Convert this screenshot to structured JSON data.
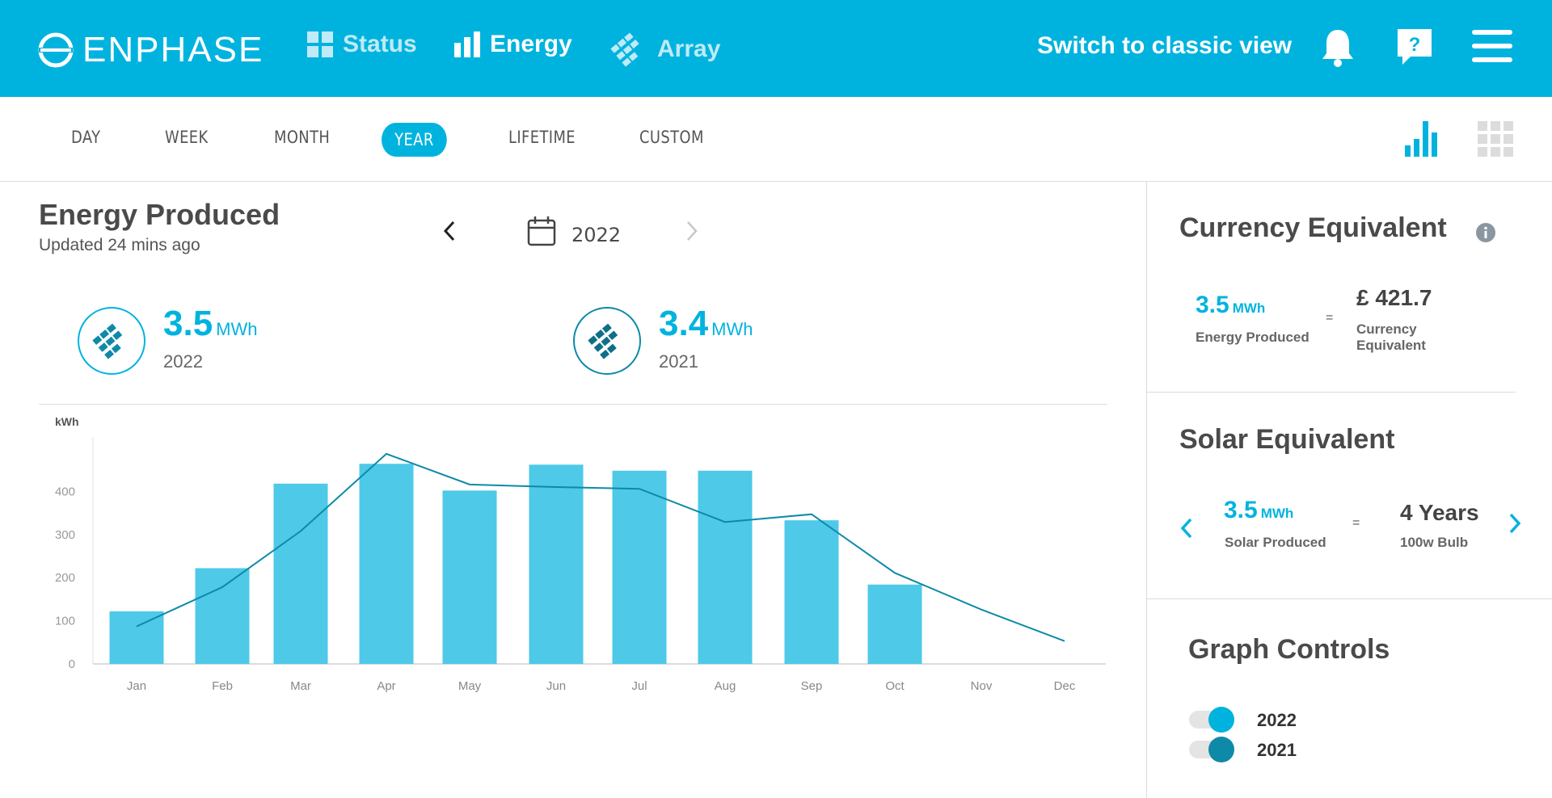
{
  "header": {
    "brand": "ENPHASE",
    "nav": [
      {
        "label": "Status",
        "icon": "dashboard-grid-icon"
      },
      {
        "label": "Energy",
        "icon": "bar-chart-icon"
      },
      {
        "label": "Array",
        "icon": "solar-array-icon"
      }
    ],
    "classic_link": "Switch to classic view",
    "icons": [
      "bell-icon",
      "help-icon",
      "menu-icon"
    ],
    "color": "#00b3df"
  },
  "tabs": [
    {
      "label": "DAY"
    },
    {
      "label": "WEEK"
    },
    {
      "label": "MONTH"
    },
    {
      "label": "YEAR",
      "active": true
    },
    {
      "label": "LIFETIME"
    },
    {
      "label": "CUSTOM"
    }
  ],
  "view_icons": [
    "bar-chart-view-icon",
    "grid-view-icon"
  ],
  "main": {
    "title": "Energy Produced",
    "updated": "Updated 24 mins ago",
    "year": "2022",
    "stats": [
      {
        "value": "3.5",
        "unit": "MWh",
        "label": "2022"
      },
      {
        "value": "3.4",
        "unit": "MWh",
        "label": "2021"
      }
    ]
  },
  "chart_data": {
    "type": "bar",
    "ylabel": "kWh",
    "ylim": [
      0,
      500
    ],
    "yticks": [
      "0",
      "100",
      "200",
      "300",
      "400"
    ],
    "categories": [
      "Jan",
      "Feb",
      "Mar",
      "Apr",
      "May",
      "Jun",
      "Jul",
      "Aug",
      "Sep",
      "Oct",
      "Nov",
      "Dec"
    ],
    "series": [
      {
        "kind": "bar",
        "values": [
          122,
          222,
          418,
          464,
          402,
          462,
          448,
          448,
          333,
          184,
          null,
          null
        ],
        "color": "#4ec9e8"
      },
      {
        "kind": "line",
        "values": [
          87,
          178,
          308,
          487,
          416,
          410,
          406,
          329,
          347,
          211,
          126,
          53
        ],
        "color": "#0e8aa8"
      }
    ]
  },
  "panel": {
    "currency": {
      "title": "Currency Equivalent",
      "energy_value": "3.5",
      "energy_unit": "MWh",
      "energy_label": "Energy Produced",
      "equals": "=",
      "money": "£ 421.7",
      "money_label_1": "Currency",
      "money_label_2": "Equivalent"
    },
    "solar": {
      "title": "Solar Equivalent",
      "value": "3.5",
      "unit": "MWh",
      "label": "Solar Produced",
      "equals": "=",
      "result": "4 Years",
      "result_label": "100w Bulb"
    },
    "graph_controls": {
      "title": "Graph Controls",
      "toggles": [
        {
          "label": "2022",
          "color": "#00b3df"
        },
        {
          "label": "2021",
          "color": "#0e8aa8"
        }
      ]
    }
  }
}
